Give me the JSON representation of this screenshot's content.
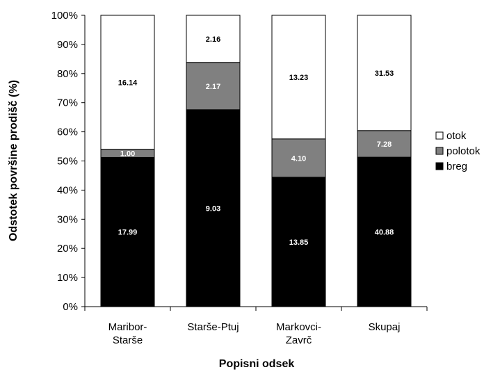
{
  "chart_data": {
    "type": "bar",
    "stacked": true,
    "percent_stacked": true,
    "categories": [
      [
        "Maribor-",
        "Starše"
      ],
      [
        "Starše-Ptuj"
      ],
      [
        "Markovci-",
        "Zavrč"
      ],
      [
        "Skupaj"
      ]
    ],
    "series": [
      {
        "name": "breg",
        "color": "#000000",
        "label_color": "#ffffff",
        "values": [
          17.99,
          9.03,
          13.85,
          40.88
        ],
        "labels": [
          "17.99",
          "9.03",
          "13.85",
          "40.88"
        ]
      },
      {
        "name": "polotok",
        "color": "#808080",
        "label_color": "#ffffff",
        "values": [
          1.0,
          2.17,
          4.1,
          7.28
        ],
        "labels": [
          "1.00",
          "2.17",
          "4.10",
          "7.28"
        ]
      },
      {
        "name": "otok",
        "color": "#ffffff",
        "label_color": "#000000",
        "values": [
          16.14,
          2.16,
          13.23,
          31.53
        ],
        "labels": [
          "16.14",
          "2.16",
          "13.23",
          "31.53"
        ]
      }
    ],
    "legend_order": [
      "otok",
      "polotok",
      "breg"
    ],
    "legend_position": "right",
    "xlabel": "Popisni odsek",
    "ylabel": "Odstotek površine prodišč (%)",
    "ylim": [
      0,
      100
    ],
    "yticks": [
      "0%",
      "10%",
      "20%",
      "30%",
      "40%",
      "50%",
      "60%",
      "70%",
      "80%",
      "90%",
      "100%"
    ],
    "grid": false
  }
}
